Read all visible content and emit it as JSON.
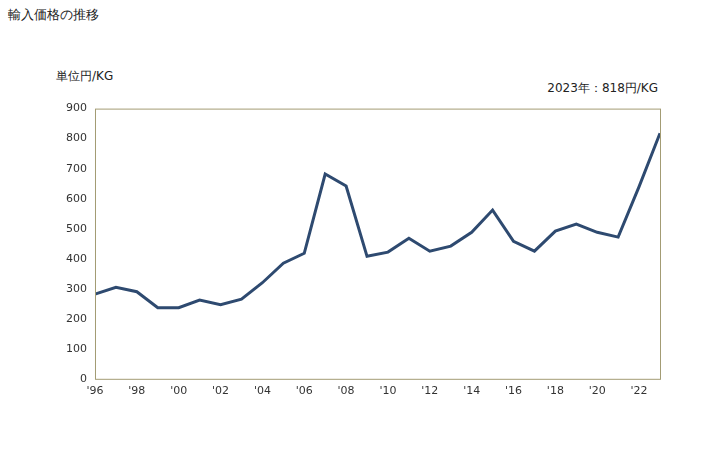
{
  "chart_data": {
    "type": "line",
    "title": "輸入価格の推移",
    "y_label": "単位円/KG",
    "annotation": "2023年：818円/KG",
    "categories": [
      "'96",
      null,
      "'98",
      null,
      "'00",
      null,
      "'02",
      null,
      "'04",
      null,
      "'06",
      null,
      "'08",
      null,
      "'10",
      null,
      "'12",
      null,
      "'14",
      null,
      "'16",
      null,
      "'18",
      null,
      "'20",
      null,
      "'22",
      null
    ],
    "values": [
      282,
      305,
      290,
      237,
      237,
      262,
      247,
      265,
      320,
      385,
      418,
      682,
      642,
      408,
      422,
      468,
      425,
      442,
      488,
      562,
      458,
      425,
      492,
      515,
      488,
      472,
      640,
      818
    ],
    "color": "#2e4a70",
    "ylim": [
      0,
      900
    ],
    "yticks": [
      0,
      100,
      200,
      300,
      400,
      500,
      600,
      700,
      800,
      900
    ],
    "grid": false
  }
}
